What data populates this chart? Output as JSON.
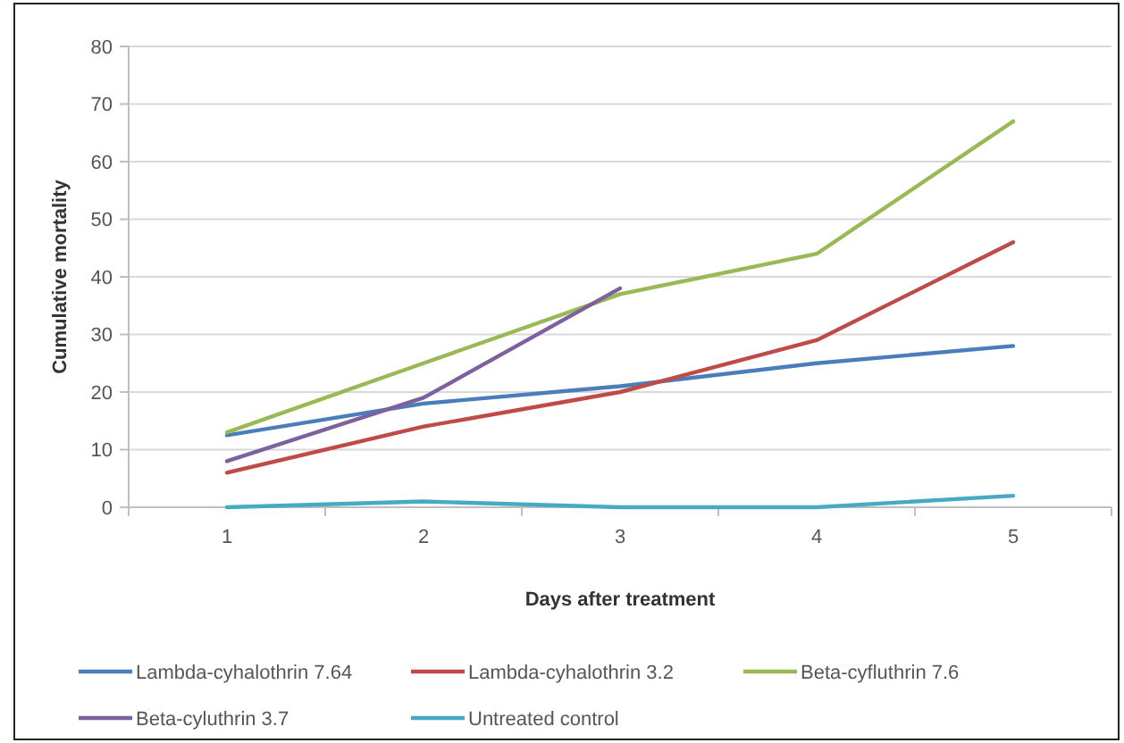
{
  "chart_data": {
    "type": "line",
    "xlabel": "Days after treatment",
    "ylabel": "Cumulative mortality",
    "categories": [
      "1",
      "2",
      "3",
      "4",
      "5"
    ],
    "ylim": [
      0,
      80
    ],
    "yticks": [
      0,
      10,
      20,
      30,
      40,
      50,
      60,
      70,
      80
    ],
    "grid": "y",
    "legend": "bottom",
    "marker": "none",
    "line_style": "solid",
    "series": [
      {
        "name": "Lambda-cyhalothrin 7.64",
        "color": "#4a7ebb",
        "values": [
          12.5,
          18,
          21,
          25,
          28
        ]
      },
      {
        "name": "Lambda-cyhalothrin 3.2",
        "color": "#be4b48",
        "values": [
          6,
          14,
          20,
          29,
          46
        ]
      },
      {
        "name": "Beta-cyfluthrin 7.6",
        "color": "#98b954",
        "values": [
          13,
          25,
          37,
          44,
          67
        ]
      },
      {
        "name": "Beta-cyluthrin 3.7",
        "color": "#7d60a0",
        "values": [
          8,
          19,
          38,
          null,
          null
        ]
      },
      {
        "name": "Untreated control",
        "color": "#46aac5",
        "values": [
          0,
          1,
          0,
          0,
          2
        ]
      }
    ]
  }
}
